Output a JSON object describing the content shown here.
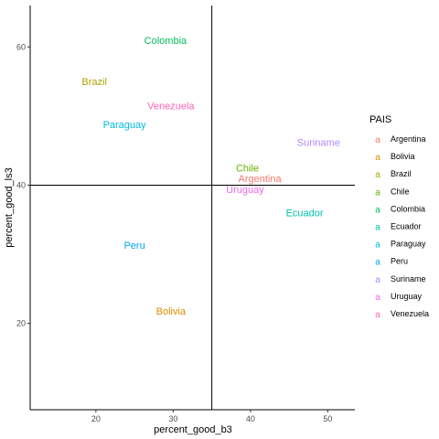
{
  "chart_data": {
    "type": "scatter",
    "xlabel": "percent_good_b3",
    "ylabel": "percent_good_ls3",
    "xlim": [
      11.5,
      53.5
    ],
    "ylim": [
      7.5,
      66
    ],
    "xticks": [
      20,
      30,
      40,
      50
    ],
    "yticks": [
      20,
      40,
      60
    ],
    "x_tick_labels": [
      "20",
      "30",
      "40",
      "50"
    ],
    "y_tick_labels": [
      "20",
      "40",
      "60"
    ],
    "vline": 35,
    "hline": 40,
    "grid": false,
    "legend": {
      "title": "PAIS",
      "placement": "right",
      "key_glyph": "a",
      "entries": [
        "Argentina",
        "Bolivia",
        "Brazil",
        "Chile",
        "Colombia",
        "Ecuador",
        "Paraguay",
        "Peru",
        "Suriname",
        "Uruguay",
        "Venezuela"
      ]
    },
    "points": [
      {
        "label": "Argentina",
        "x": 41.2,
        "y": 41.0,
        "color": "#F8766D"
      },
      {
        "label": "Bolivia",
        "x": 29.7,
        "y": 21.8,
        "color": "#DB8E00"
      },
      {
        "label": "Brazil",
        "x": 19.8,
        "y": 55.0,
        "color": "#AEA200"
      },
      {
        "label": "Chile",
        "x": 39.6,
        "y": 42.5,
        "color": "#64B200"
      },
      {
        "label": "Colombia",
        "x": 29.0,
        "y": 61.0,
        "color": "#00BD5C"
      },
      {
        "label": "Ecuador",
        "x": 47.0,
        "y": 36.0,
        "color": "#00C1A7"
      },
      {
        "label": "Paraguay",
        "x": 23.7,
        "y": 48.8,
        "color": "#00BADE"
      },
      {
        "label": "Peru",
        "x": 25.0,
        "y": 31.3,
        "color": "#00A6FF"
      },
      {
        "label": "Suriname",
        "x": 48.8,
        "y": 46.2,
        "color": "#B385FF"
      },
      {
        "label": "Uruguay",
        "x": 39.3,
        "y": 39.4,
        "color": "#EF67EB"
      },
      {
        "label": "Venezuela",
        "x": 29.7,
        "y": 51.5,
        "color": "#FF63B6"
      }
    ]
  }
}
